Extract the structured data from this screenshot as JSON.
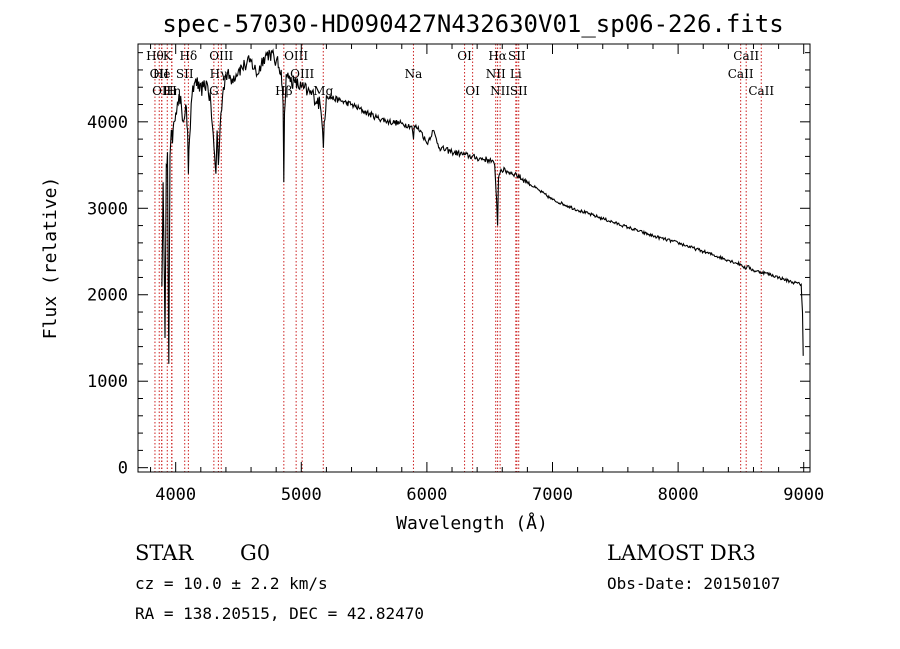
{
  "chart_data": {
    "type": "line",
    "title": "spec-57030-HD090427N432630V01_sp06-226.fits",
    "xlabel": "Wavelength (Å)",
    "ylabel": "Flux (relative)",
    "xlim": [
      3700,
      9050
    ],
    "ylim": [
      -50,
      4900
    ],
    "xticks": [
      4000,
      5000,
      6000,
      7000,
      8000,
      9000
    ],
    "yticks": [
      0,
      1000,
      2000,
      3000,
      4000
    ],
    "series": [
      {
        "name": "spectrum",
        "x": [
          3890,
          3900,
          3915,
          3925,
          3935,
          3945,
          3955,
          3965,
          3975,
          3985,
          4000,
          4020,
          4040,
          4060,
          4080,
          4095,
          4101,
          4110,
          4130,
          4160,
          4190,
          4220,
          4250,
          4280,
          4305,
          4320,
          4330,
          4340,
          4360,
          4380,
          4400,
          4450,
          4500,
          4550,
          4600,
          4650,
          4700,
          4750,
          4800,
          4840,
          4855,
          4861,
          4866,
          4880,
          4900,
          4950,
          5000,
          5050,
          5100,
          5150,
          5170,
          5176,
          5182,
          5200,
          5300,
          5400,
          5500,
          5600,
          5700,
          5800,
          5880,
          5893,
          5900,
          5950,
          6000,
          6050,
          6100,
          6200,
          6300,
          6400,
          6500,
          6540,
          6555,
          6563,
          6570,
          6590,
          6650,
          6700,
          6800,
          6900,
          7000,
          7200,
          7400,
          7600,
          7800,
          8000,
          8200,
          8400,
          8500,
          8542,
          8550,
          8600,
          8700,
          8800,
          8900,
          8980,
          8990,
          8996,
          9000
        ],
        "y": [
          2100,
          3300,
          1500,
          3500,
          3650,
          1200,
          3600,
          3900,
          3750,
          4000,
          4100,
          4200,
          4300,
          4000,
          4200,
          3900,
          3400,
          3800,
          4300,
          4500,
          4350,
          4400,
          4450,
          4200,
          3700,
          3400,
          3900,
          3500,
          4100,
          4400,
          4550,
          4500,
          4600,
          4650,
          4700,
          4550,
          4750,
          4800,
          4700,
          4600,
          4200,
          3300,
          4100,
          4550,
          4500,
          4450,
          4400,
          4350,
          4300,
          4200,
          3900,
          3700,
          4000,
          4300,
          4250,
          4200,
          4120,
          4050,
          4000,
          3980,
          3950,
          3800,
          3950,
          3900,
          3750,
          3900,
          3700,
          3650,
          3620,
          3580,
          3560,
          3500,
          3100,
          2800,
          3350,
          3450,
          3420,
          3400,
          3300,
          3200,
          3100,
          2980,
          2880,
          2780,
          2680,
          2600,
          2500,
          2400,
          2350,
          2300,
          2330,
          2280,
          2250,
          2200,
          2150,
          2120,
          1800,
          1300,
          1300
        ]
      }
    ],
    "lines": [
      {
        "w": 3835,
        "label": "Hθ",
        "row": 0
      },
      {
        "w": 3869,
        "label": "OII",
        "row": 1
      },
      {
        "w": 3889,
        "label": "OII",
        "row": 2
      },
      {
        "w": 3933,
        "label": "K",
        "row": 0
      },
      {
        "w": 3889,
        "label": "He",
        "row": 1
      },
      {
        "w": 3970,
        "label": "Hη",
        "row": 2
      },
      {
        "w": 3968,
        "label": "H",
        "row": 2
      },
      {
        "w": 4072,
        "label": "SII",
        "row": 1
      },
      {
        "w": 4101,
        "label": "Hδ",
        "row": 0
      },
      {
        "w": 4340,
        "label": "Hγ",
        "row": 1
      },
      {
        "w": 4363,
        "label": "OIII",
        "row": 0
      },
      {
        "w": 4304,
        "label": "G",
        "row": 2
      },
      {
        "w": 4861,
        "label": "Hβ",
        "row": 2
      },
      {
        "w": 4959,
        "label": "OIII",
        "row": 0
      },
      {
        "w": 5007,
        "label": "OIII",
        "row": 1
      },
      {
        "w": 5175,
        "label": "Mg",
        "row": 2
      },
      {
        "w": 5893,
        "label": "Na",
        "row": 1
      },
      {
        "w": 6300,
        "label": "OI",
        "row": 0
      },
      {
        "w": 6364,
        "label": "OI",
        "row": 2
      },
      {
        "w": 6548,
        "label": "NII",
        "row": 1
      },
      {
        "w": 6563,
        "label": "Hα",
        "row": 0
      },
      {
        "w": 6583,
        "label": "NII",
        "row": 2
      },
      {
        "w": 6708,
        "label": "Li",
        "row": 1
      },
      {
        "w": 6716,
        "label": "SII",
        "row": 0
      },
      {
        "w": 6731,
        "label": "SII",
        "row": 2
      },
      {
        "w": 8498,
        "label": "CaII",
        "row": 1
      },
      {
        "w": 8542,
        "label": "CaII",
        "row": 0
      },
      {
        "w": 8662,
        "label": "CaII",
        "row": 2
      }
    ]
  },
  "info": {
    "object_type": "STAR",
    "subclass": "G0",
    "survey": "LAMOST DR3",
    "cz": "cz = 10.0 ± 2.2 km/s",
    "obs_date": "Obs-Date: 20150107",
    "coords": "RA = 138.20515, DEC =  42.82470"
  },
  "colors": {
    "line_marker": "#cc2020",
    "spectrum": "#000000"
  }
}
